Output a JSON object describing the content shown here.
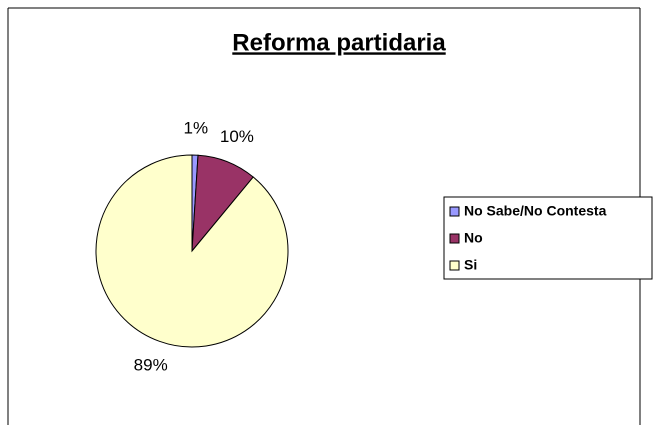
{
  "chart_data": {
    "type": "pie",
    "title": "Reforma partidaria",
    "categories": [
      "No Sabe/No Contesta",
      "No",
      "Si"
    ],
    "values": [
      1,
      10,
      89
    ],
    "value_labels": [
      "1%",
      "10%",
      "89%"
    ],
    "colors": [
      "#9999ff",
      "#993366",
      "#ffffcc"
    ],
    "legend": "right"
  }
}
